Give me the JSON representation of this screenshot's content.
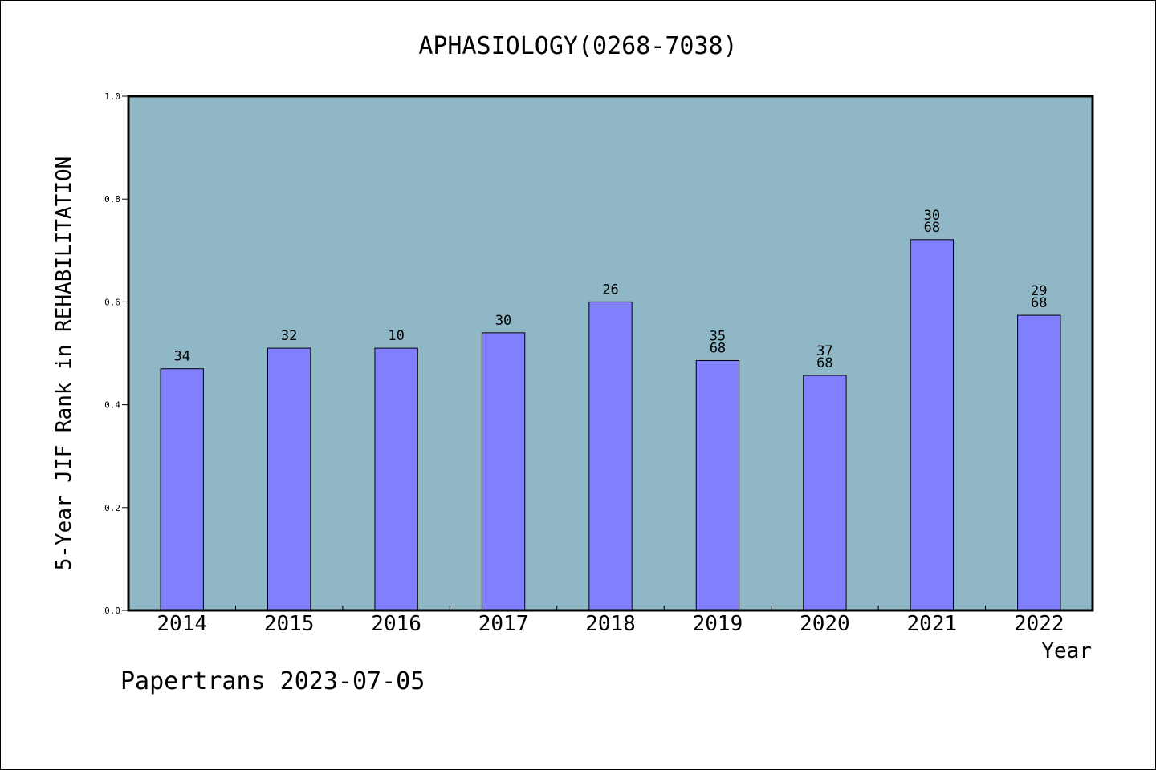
{
  "chart_data": {
    "type": "bar",
    "title": "APHASIOLOGY(0268-7038)",
    "xlabel": "Year",
    "ylabel": "5-Year JIF Rank in REHABILITATION",
    "categories": [
      "2014",
      "2015",
      "2016",
      "2017",
      "2018",
      "2019",
      "2020",
      "2021",
      "2022"
    ],
    "values": [
      0.47,
      0.51,
      0.51,
      0.54,
      0.6,
      0.486,
      0.457,
      0.721,
      0.574
    ],
    "bar_labels": [
      [
        "34"
      ],
      [
        "32"
      ],
      [
        "10"
      ],
      [
        "30"
      ],
      [
        "26"
      ],
      [
        "35",
        "68"
      ],
      [
        "37",
        "68"
      ],
      [
        "30",
        "68"
      ],
      [
        "29",
        "68"
      ]
    ],
    "ylim": [
      0,
      1.0
    ],
    "yticks": [
      "0.0",
      "0.2",
      "0.4",
      "0.6",
      "0.8",
      "1.0"
    ],
    "grid": false,
    "legend": "none"
  },
  "colors": {
    "plot_background": "#8fb7c5",
    "bar_fill": "#8080ff",
    "bar_stroke": "#000000",
    "axis": "#000000",
    "text": "#000000"
  },
  "footer": {
    "text": "Papertrans 2023-07-05"
  }
}
